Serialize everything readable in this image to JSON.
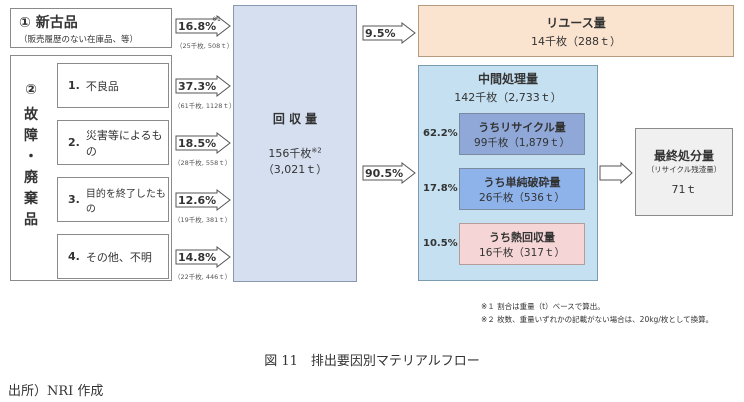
{
  "new_items": {
    "number": "①",
    "title": "新古品",
    "subtitle": "（販売履歴のない在庫品、等）",
    "pct": "16.8%",
    "note_mark": "※1",
    "count": "（25千枚, 508ｔ）"
  },
  "disposal": {
    "number": "②",
    "chars": [
      "故",
      "障",
      "・",
      "廃",
      "棄",
      "品"
    ]
  },
  "reasons": [
    {
      "num": "1.",
      "label": "不良品",
      "pct": "37.3%",
      "count": "（61千枚, 1128ｔ）"
    },
    {
      "num": "2.",
      "label": "災害等によるもの",
      "pct": "18.5%",
      "count": "（28千枚, 558ｔ）"
    },
    {
      "num": "3.",
      "label": "目的を終了したもの",
      "pct": "12.6%",
      "count": "（19千枚, 381ｔ）"
    },
    {
      "num": "4.",
      "label": "その他、不明",
      "pct": "14.8%",
      "count": "（22千枚, 446ｔ）"
    }
  ],
  "collection": {
    "title": "回 収 量",
    "amount": "156千枚",
    "note_mark": "※2",
    "weight": "（3,021ｔ）"
  },
  "reuse": {
    "pct": "9.5%",
    "title": "リユース量",
    "amount": "14千枚（288ｔ）"
  },
  "intermediate": {
    "pct": "90.5%",
    "title": "中間処理量",
    "amount": "142千枚（2,733ｔ）",
    "items": [
      {
        "pct": "62.2%",
        "title": "うちリサイクル量",
        "amount": "99千枚（1,879ｔ）",
        "color": "#8fa8d8"
      },
      {
        "pct": "17.8%",
        "title": "うち単純破砕量",
        "amount": "26千枚（536ｔ）",
        "color": "#8eb2ea"
      },
      {
        "pct": "10.5%",
        "title": "うち熱回収量",
        "amount": "16千枚（317ｔ）",
        "color": "#f5d5d5"
      }
    ]
  },
  "final": {
    "title": "最終処分量",
    "sub": "（リサイクル残渣量）",
    "amount": "71ｔ"
  },
  "notes": [
    "※１ 割合は重量（t）ベースで算出。",
    "※２ 枚数、重量いずれかの記載がない場合は、20kg/枚として換算。"
  ],
  "caption": "図 11　排出要因別マテリアルフロー",
  "source": "出所）NRI 作成",
  "colors": {
    "collection_fill": "#d5dff0",
    "reuse_fill": "#fbe4cf",
    "intermediate_fill": "#c5e0f0",
    "final_fill": "#f0f0f0"
  }
}
